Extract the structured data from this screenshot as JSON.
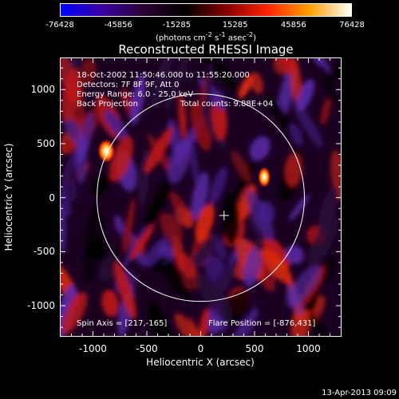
{
  "colorbar": {
    "ticks": [
      "-76428",
      "-45856",
      "-15285",
      "15285",
      "45856",
      "76428"
    ],
    "tick_values": [
      -76428,
      -45856,
      -15285,
      15285,
      45856,
      76428
    ],
    "min": -76428,
    "max": 76428,
    "units_main": "(photons cm",
    "units_exp1": "-2",
    "units_mid": " s",
    "units_exp2": "-1",
    "units_mid2": " asec",
    "units_exp3": "-2",
    "units_end": ")",
    "colors": [
      "#0000ff",
      "#3a00a0",
      "#2a0033",
      "#000000",
      "#8a0000",
      "#ff2400",
      "#ffa000",
      "#ffffff"
    ]
  },
  "chart_data": {
    "type": "heatmap",
    "title": "Reconstructed RHESSI Image",
    "xlabel": "Heliocentric X (arcsec)",
    "ylabel": "Heliocentric Y (arcsec)",
    "xlim": [
      -1300,
      1300
    ],
    "ylim": [
      -1280,
      1290
    ],
    "xticks": [
      -1000,
      -500,
      0,
      500,
      1000
    ],
    "yticks": [
      -1000,
      -500,
      0,
      500,
      1000
    ],
    "xtick_labels": [
      "-1000",
      "-500",
      "0",
      "500",
      "1000"
    ],
    "ytick_labels": [
      "-1000",
      "-500",
      "0",
      "500",
      "1000"
    ],
    "solar_limb_radius": 963,
    "flare_position": [
      -876,
      431
    ],
    "spin_axis": [
      217,
      -165
    ],
    "hot_spots": [
      {
        "x": -876,
        "y": 431
      },
      {
        "x": 590,
        "y": 190
      }
    ],
    "annotations": {
      "time_range": "18-Oct-2002 11:50:46.000 to 11:55:20.000",
      "detectors": "Detectors: 7F 8F 9F, Att 0",
      "energy": "Energy Range: 6.0 - 25.0 keV",
      "method": "Back Projection",
      "counts": "Total counts: 9.88E+04",
      "spin_axis_label": "Spin Axis = [217,-165]",
      "flare_position_label": "Flare Position = [-876,431]"
    }
  },
  "footer": {
    "timestamp": "13-Apr-2013 09:09"
  }
}
